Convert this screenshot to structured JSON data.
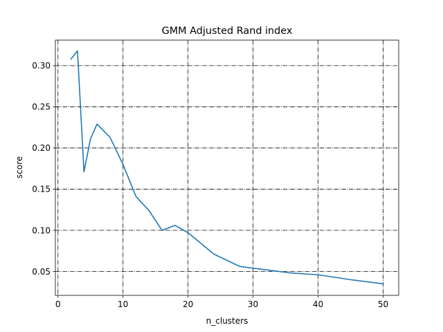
{
  "chart_data": {
    "type": "line",
    "title": "GMM Adjusted Rand index",
    "xlabel": "n_clusters",
    "ylabel": "score",
    "xlim": [
      -0.4,
      52.4
    ],
    "ylim": [
      0.021,
      0.331
    ],
    "xticks": [
      0,
      10,
      20,
      30,
      40,
      50
    ],
    "xtick_labels": [
      "0",
      "10",
      "20",
      "30",
      "40",
      "50"
    ],
    "yticks": [
      0.05,
      0.1,
      0.15,
      0.2,
      0.25,
      0.3
    ],
    "ytick_labels": [
      "0.05",
      "0.10",
      "0.15",
      "0.20",
      "0.25",
      "0.30"
    ],
    "grid": true,
    "legend": "none",
    "series": [
      {
        "color": "#1f77b4",
        "x": [
          2,
          3,
          4,
          5,
          6,
          8,
          10,
          12,
          14,
          16,
          18,
          20,
          24,
          28,
          32,
          36,
          40,
          45,
          50
        ],
        "y": [
          0.308,
          0.318,
          0.171,
          0.211,
          0.229,
          0.213,
          0.18,
          0.141,
          0.124,
          0.1,
          0.106,
          0.097,
          0.071,
          0.056,
          0.052,
          0.048,
          0.046,
          0.04,
          0.035
        ]
      }
    ]
  }
}
